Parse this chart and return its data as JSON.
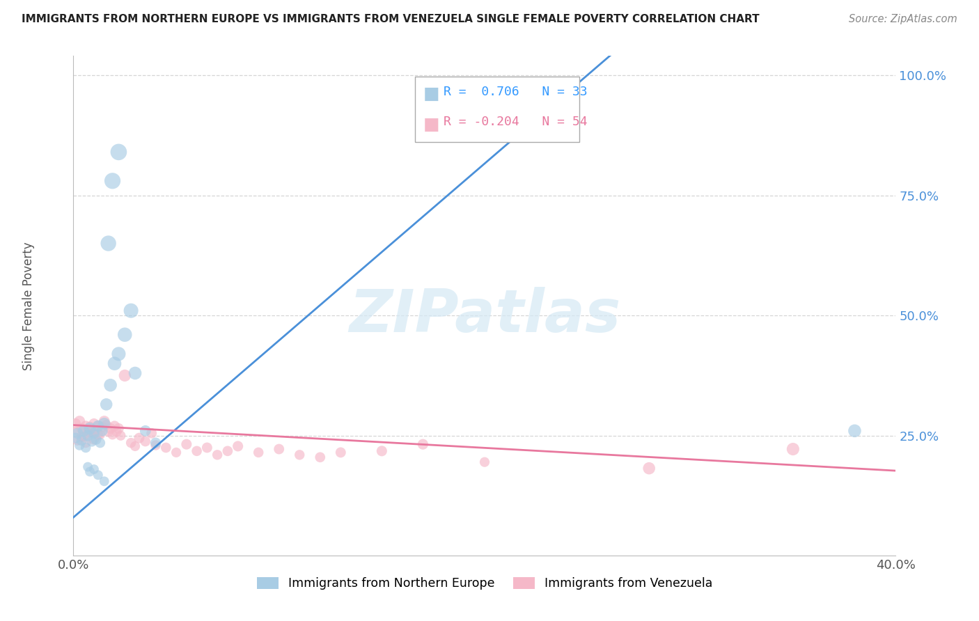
{
  "title": "IMMIGRANTS FROM NORTHERN EUROPE VS IMMIGRANTS FROM VENEZUELA SINGLE FEMALE POVERTY CORRELATION CHART",
  "source": "Source: ZipAtlas.com",
  "ylabel": "Single Female Poverty",
  "xlim": [
    0.0,
    0.4
  ],
  "ylim": [
    0.0,
    1.04
  ],
  "yticks": [
    0.25,
    0.5,
    0.75,
    1.0
  ],
  "ytick_labels": [
    "25.0%",
    "50.0%",
    "75.0%",
    "100.0%"
  ],
  "xticks": [
    0.0,
    0.1,
    0.2,
    0.3,
    0.4
  ],
  "xtick_labels": [
    "0.0%",
    "",
    "",
    "",
    "40.0%"
  ],
  "R_blue": 0.706,
  "N_blue": 33,
  "R_pink": -0.204,
  "N_pink": 54,
  "blue_color": "#a8cce4",
  "pink_color": "#f5b8c8",
  "blue_line_color": "#4a90d9",
  "pink_line_color": "#e8789e",
  "legend_label_blue": "Immigrants from Northern Europe",
  "legend_label_pink": "Immigrants from Venezuela",
  "watermark": "ZIPatlas",
  "background_color": "#ffffff",
  "blue_scatter": [
    [
      0.001,
      0.245
    ],
    [
      0.002,
      0.255
    ],
    [
      0.003,
      0.23
    ],
    [
      0.004,
      0.24
    ],
    [
      0.005,
      0.26
    ],
    [
      0.006,
      0.225
    ],
    [
      0.007,
      0.25
    ],
    [
      0.008,
      0.265
    ],
    [
      0.009,
      0.238
    ],
    [
      0.01,
      0.255
    ],
    [
      0.011,
      0.242
    ],
    [
      0.012,
      0.27
    ],
    [
      0.013,
      0.235
    ],
    [
      0.014,
      0.26
    ],
    [
      0.015,
      0.275
    ],
    [
      0.016,
      0.315
    ],
    [
      0.018,
      0.355
    ],
    [
      0.02,
      0.4
    ],
    [
      0.022,
      0.42
    ],
    [
      0.025,
      0.46
    ],
    [
      0.028,
      0.51
    ],
    [
      0.03,
      0.38
    ],
    [
      0.035,
      0.26
    ],
    [
      0.04,
      0.235
    ],
    [
      0.017,
      0.65
    ],
    [
      0.019,
      0.78
    ],
    [
      0.022,
      0.84
    ],
    [
      0.38,
      0.26
    ],
    [
      0.007,
      0.185
    ],
    [
      0.008,
      0.175
    ],
    [
      0.01,
      0.18
    ],
    [
      0.012,
      0.168
    ],
    [
      0.015,
      0.155
    ]
  ],
  "pink_scatter": [
    [
      0.001,
      0.275
    ],
    [
      0.002,
      0.26
    ],
    [
      0.003,
      0.28
    ],
    [
      0.004,
      0.265
    ],
    [
      0.005,
      0.248
    ],
    [
      0.006,
      0.27
    ],
    [
      0.007,
      0.255
    ],
    [
      0.008,
      0.268
    ],
    [
      0.009,
      0.258
    ],
    [
      0.01,
      0.275
    ],
    [
      0.011,
      0.262
    ],
    [
      0.012,
      0.27
    ],
    [
      0.013,
      0.252
    ],
    [
      0.014,
      0.268
    ],
    [
      0.015,
      0.28
    ],
    [
      0.016,
      0.272
    ],
    [
      0.017,
      0.258
    ],
    [
      0.018,
      0.265
    ],
    [
      0.019,
      0.252
    ],
    [
      0.02,
      0.27
    ],
    [
      0.021,
      0.258
    ],
    [
      0.022,
      0.265
    ],
    [
      0.023,
      0.25
    ],
    [
      0.025,
      0.375
    ],
    [
      0.028,
      0.235
    ],
    [
      0.03,
      0.228
    ],
    [
      0.032,
      0.245
    ],
    [
      0.035,
      0.238
    ],
    [
      0.038,
      0.255
    ],
    [
      0.04,
      0.23
    ],
    [
      0.045,
      0.225
    ],
    [
      0.05,
      0.215
    ],
    [
      0.055,
      0.232
    ],
    [
      0.06,
      0.218
    ],
    [
      0.065,
      0.225
    ],
    [
      0.07,
      0.21
    ],
    [
      0.075,
      0.218
    ],
    [
      0.08,
      0.228
    ],
    [
      0.09,
      0.215
    ],
    [
      0.1,
      0.222
    ],
    [
      0.11,
      0.21
    ],
    [
      0.12,
      0.205
    ],
    [
      0.13,
      0.215
    ],
    [
      0.15,
      0.218
    ],
    [
      0.17,
      0.232
    ],
    [
      0.2,
      0.195
    ],
    [
      0.002,
      0.24
    ],
    [
      0.004,
      0.248
    ],
    [
      0.006,
      0.235
    ],
    [
      0.008,
      0.258
    ],
    [
      0.01,
      0.242
    ],
    [
      0.012,
      0.252
    ],
    [
      0.28,
      0.182
    ],
    [
      0.35,
      0.222
    ]
  ],
  "blue_sizes": [
    120,
    130,
    110,
    120,
    140,
    110,
    130,
    150,
    120,
    130,
    120,
    140,
    110,
    130,
    150,
    160,
    180,
    200,
    210,
    220,
    230,
    180,
    130,
    120,
    260,
    280,
    290,
    180,
    100,
    100,
    100,
    100,
    100
  ],
  "pink_sizes": [
    120,
    110,
    130,
    115,
    105,
    120,
    110,
    125,
    112,
    118,
    108,
    120,
    105,
    118,
    130,
    115,
    108,
    120,
    105,
    118,
    110,
    115,
    105,
    155,
    108,
    105,
    118,
    112,
    115,
    108,
    112,
    105,
    118,
    110,
    115,
    108,
    112,
    118,
    110,
    115,
    108,
    112,
    115,
    118,
    120,
    105,
    110,
    115,
    108,
    120,
    112,
    115,
    160,
    170
  ]
}
